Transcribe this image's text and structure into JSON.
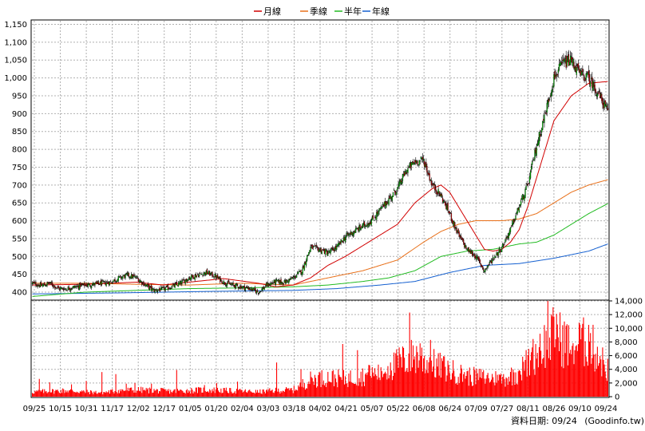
{
  "chart_data": [
    {
      "type": "candlestick",
      "legend": [
        {
          "name": "月線",
          "color": "#d10000"
        },
        {
          "name": "季線",
          "color": "#e8701a"
        },
        {
          "name": "半年",
          "color": "#22bb22"
        },
        {
          "name": "年線",
          "color": "#1560d0"
        }
      ],
      "ylim": [
        380,
        1160
      ],
      "y_ticks": [
        "400",
        "450",
        "500",
        "550",
        "600",
        "650",
        "700",
        "750",
        "800",
        "850",
        "900",
        "950",
        "1,000",
        "1,050",
        "1,100",
        "1,150"
      ],
      "up_color": "#00cc00",
      "down_color": "#cc0000",
      "close_anchors": [
        [
          0,
          425
        ],
        [
          10,
          418
        ],
        [
          20,
          425
        ],
        [
          30,
          410
        ],
        [
          40,
          410
        ],
        [
          55,
          418
        ],
        [
          70,
          422
        ],
        [
          80,
          425
        ],
        [
          90,
          428
        ],
        [
          100,
          440
        ],
        [
          110,
          448
        ],
        [
          120,
          440
        ],
        [
          130,
          420
        ],
        [
          140,
          405
        ],
        [
          150,
          408
        ],
        [
          160,
          415
        ],
        [
          170,
          425
        ],
        [
          180,
          440
        ],
        [
          190,
          448
        ],
        [
          200,
          455
        ],
        [
          210,
          445
        ],
        [
          220,
          428
        ],
        [
          230,
          420
        ],
        [
          240,
          415
        ],
        [
          250,
          410
        ],
        [
          260,
          400
        ],
        [
          270,
          420
        ],
        [
          280,
          430
        ],
        [
          290,
          428
        ],
        [
          300,
          440
        ],
        [
          310,
          460
        ],
        [
          320,
          525
        ],
        [
          330,
          520
        ],
        [
          340,
          510
        ],
        [
          350,
          525
        ],
        [
          360,
          555
        ],
        [
          370,
          570
        ],
        [
          380,
          585
        ],
        [
          390,
          600
        ],
        [
          400,
          630
        ],
        [
          410,
          660
        ],
        [
          420,
          690
        ],
        [
          430,
          740
        ],
        [
          440,
          765
        ],
        [
          450,
          770
        ],
        [
          460,
          700
        ],
        [
          470,
          670
        ],
        [
          480,
          620
        ],
        [
          490,
          560
        ],
        [
          500,
          520
        ],
        [
          510,
          500
        ],
        [
          520,
          460
        ],
        [
          530,
          495
        ],
        [
          540,
          525
        ],
        [
          550,
          575
        ],
        [
          560,
          640
        ],
        [
          570,
          700
        ],
        [
          580,
          810
        ],
        [
          590,
          900
        ],
        [
          600,
          1000
        ],
        [
          610,
          1040
        ],
        [
          620,
          1050
        ],
        [
          630,
          1010
        ],
        [
          640,
          1000
        ],
        [
          650,
          960
        ],
        [
          662,
          905
        ]
      ],
      "ma20_anchors": [
        [
          0,
          420
        ],
        [
          60,
          422
        ],
        [
          120,
          428
        ],
        [
          150,
          420
        ],
        [
          180,
          428
        ],
        [
          220,
          438
        ],
        [
          260,
          425
        ],
        [
          280,
          415
        ],
        [
          300,
          420
        ],
        [
          320,
          440
        ],
        [
          340,
          475
        ],
        [
          360,
          500
        ],
        [
          380,
          530
        ],
        [
          400,
          560
        ],
        [
          420,
          590
        ],
        [
          440,
          650
        ],
        [
          460,
          690
        ],
        [
          470,
          700
        ],
        [
          480,
          680
        ],
        [
          490,
          640
        ],
        [
          500,
          600
        ],
        [
          510,
          560
        ],
        [
          520,
          520
        ],
        [
          530,
          515
        ],
        [
          540,
          520
        ],
        [
          550,
          540
        ],
        [
          560,
          575
        ],
        [
          570,
          640
        ],
        [
          580,
          720
        ],
        [
          590,
          800
        ],
        [
          600,
          880
        ],
        [
          620,
          950
        ],
        [
          640,
          985
        ],
        [
          662,
          990
        ]
      ],
      "ma60_anchors": [
        [
          0,
          425
        ],
        [
          60,
          425
        ],
        [
          120,
          422
        ],
        [
          180,
          420
        ],
        [
          240,
          425
        ],
        [
          300,
          420
        ],
        [
          340,
          440
        ],
        [
          380,
          460
        ],
        [
          420,
          490
        ],
        [
          450,
          540
        ],
        [
          470,
          570
        ],
        [
          490,
          590
        ],
        [
          510,
          600
        ],
        [
          540,
          600
        ],
        [
          560,
          605
        ],
        [
          580,
          620
        ],
        [
          600,
          650
        ],
        [
          620,
          680
        ],
        [
          640,
          700
        ],
        [
          662,
          715
        ]
      ],
      "ma120_anchors": [
        [
          0,
          388
        ],
        [
          60,
          400
        ],
        [
          120,
          405
        ],
        [
          180,
          410
        ],
        [
          240,
          412
        ],
        [
          300,
          415
        ],
        [
          340,
          420
        ],
        [
          380,
          430
        ],
        [
          410,
          440
        ],
        [
          440,
          460
        ],
        [
          470,
          500
        ],
        [
          500,
          515
        ],
        [
          530,
          520
        ],
        [
          560,
          535
        ],
        [
          580,
          540
        ],
        [
          600,
          560
        ],
        [
          620,
          590
        ],
        [
          640,
          620
        ],
        [
          662,
          648
        ]
      ],
      "ma240_anchors": [
        [
          0,
          395
        ],
        [
          100,
          398
        ],
        [
          200,
          402
        ],
        [
          300,
          405
        ],
        [
          350,
          410
        ],
        [
          400,
          420
        ],
        [
          440,
          430
        ],
        [
          480,
          455
        ],
        [
          520,
          475
        ],
        [
          560,
          480
        ],
        [
          600,
          495
        ],
        [
          640,
          515
        ],
        [
          662,
          535
        ]
      ],
      "x_ticks": [
        "09/25",
        "10/15",
        "10/31",
        "11/17",
        "12/02",
        "12/17",
        "01/05",
        "01/20",
        "02/04",
        "03/03",
        "03/18",
        "04/02",
        "04/21",
        "05/07",
        "05/22",
        "06/08",
        "06/24",
        "07/09",
        "07/27",
        "08/11",
        "08/26",
        "09/10",
        "09/24"
      ]
    },
    {
      "type": "bar",
      "title": "",
      "ylim": [
        0,
        14000
      ],
      "y_ticks": [
        "0",
        "2,000",
        "4,000",
        "6,000",
        "8,000",
        "10,000",
        "12,000",
        "14,000"
      ],
      "bar_color": "#ff0000",
      "volume_anchors": [
        [
          0,
          700
        ],
        [
          20,
          800
        ],
        [
          40,
          900
        ],
        [
          60,
          700
        ],
        [
          80,
          600
        ],
        [
          100,
          900
        ],
        [
          120,
          1000
        ],
        [
          140,
          900
        ],
        [
          160,
          800
        ],
        [
          180,
          900
        ],
        [
          200,
          1000
        ],
        [
          220,
          900
        ],
        [
          240,
          800
        ],
        [
          260,
          700
        ],
        [
          280,
          900
        ],
        [
          300,
          1000
        ],
        [
          320,
          2500
        ],
        [
          340,
          2800
        ],
        [
          360,
          2600
        ],
        [
          380,
          3000
        ],
        [
          400,
          3500
        ],
        [
          420,
          4800
        ],
        [
          440,
          6000
        ],
        [
          460,
          4800
        ],
        [
          480,
          3800
        ],
        [
          500,
          3000
        ],
        [
          520,
          2800
        ],
        [
          540,
          2600
        ],
        [
          560,
          3500
        ],
        [
          580,
          6500
        ],
        [
          600,
          9000
        ],
        [
          620,
          7500
        ],
        [
          640,
          8000
        ],
        [
          662,
          4000
        ]
      ],
      "volume_spikes": [
        [
          8,
          2600
        ],
        [
          20,
          2100
        ],
        [
          45,
          1800
        ],
        [
          62,
          2300
        ],
        [
          80,
          3600
        ],
        [
          96,
          3300
        ],
        [
          108,
          1900
        ],
        [
          118,
          2000
        ],
        [
          137,
          1900
        ],
        [
          166,
          3900
        ],
        [
          198,
          1700
        ],
        [
          212,
          2000
        ],
        [
          236,
          2200
        ],
        [
          281,
          5000
        ],
        [
          309,
          4000
        ],
        [
          330,
          3600
        ],
        [
          357,
          7700
        ],
        [
          374,
          6800
        ],
        [
          388,
          4600
        ],
        [
          401,
          4300
        ],
        [
          412,
          5000
        ],
        [
          422,
          7200
        ],
        [
          434,
          12300
        ],
        [
          446,
          7800
        ],
        [
          458,
          8300
        ],
        [
          472,
          5200
        ],
        [
          497,
          3600
        ],
        [
          517,
          2700
        ],
        [
          535,
          3200
        ],
        [
          560,
          3900
        ],
        [
          566,
          3800
        ],
        [
          575,
          7200
        ],
        [
          584,
          9200
        ],
        [
          593,
          14200
        ],
        [
          603,
          12100
        ],
        [
          620,
          6200
        ],
        [
          630,
          10500
        ],
        [
          640,
          10500
        ],
        [
          650,
          7300
        ],
        [
          660,
          2700
        ]
      ]
    }
  ],
  "footer": {
    "label": "資料日期: 09/24",
    "source": "(Goodinfo.tw)"
  }
}
